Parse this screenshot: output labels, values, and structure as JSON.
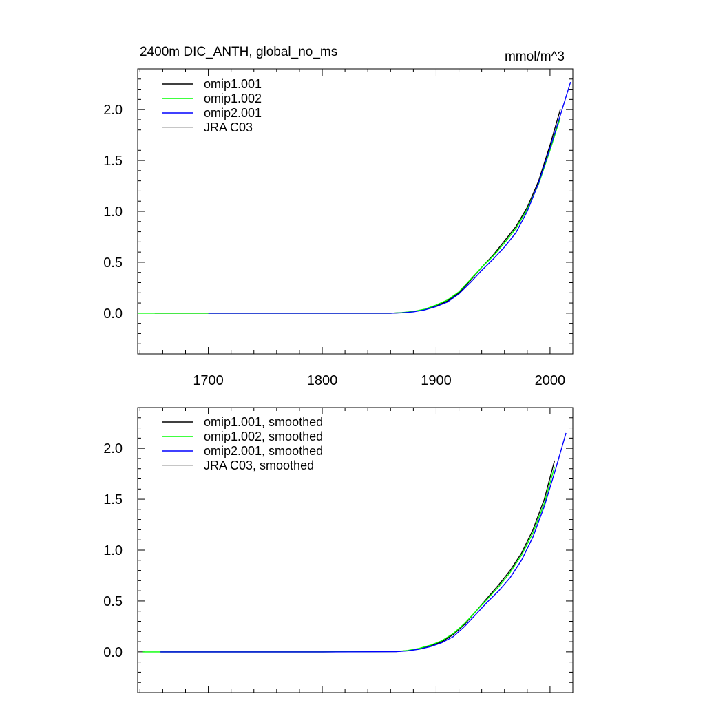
{
  "chart_data": [
    {
      "type": "line",
      "title": "2400m DIC_ANTH, global_no_ms",
      "units": "mmol/m^3",
      "xlim": [
        1638,
        2020
      ],
      "ylim": [
        -0.4,
        2.4
      ],
      "xticks": [
        1700,
        1800,
        1900,
        2000
      ],
      "xtick_labels": [
        "1700",
        "1800",
        "1900",
        "2000"
      ],
      "yticks": [
        0.0,
        0.5,
        1.0,
        1.5,
        2.0
      ],
      "ytick_labels": [
        "0.0",
        "0.5",
        "1.0",
        "1.5",
        "2.0"
      ],
      "show_xtick_labels": true,
      "legend_position": "top-left",
      "series": [
        {
          "name": "omip1.001",
          "color": "#000000",
          "x": [
            1653,
            1700,
            1800,
            1860,
            1870,
            1880,
            1890,
            1900,
            1910,
            1920,
            1930,
            1940,
            1950,
            1960,
            1970,
            1980,
            1990,
            2000,
            2009
          ],
          "y": [
            0,
            0,
            0,
            0,
            0.005,
            0.015,
            0.035,
            0.07,
            0.12,
            0.2,
            0.32,
            0.45,
            0.57,
            0.71,
            0.85,
            1.04,
            1.3,
            1.65,
            2.0
          ]
        },
        {
          "name": "omip1.002",
          "color": "#00ff00",
          "x": [
            1638,
            1700,
            1800,
            1860,
            1870,
            1880,
            1890,
            1900,
            1910,
            1920,
            1930,
            1940,
            1950,
            1960,
            1970,
            1980,
            1990,
            2000,
            2009
          ],
          "y": [
            0,
            0,
            0,
            0,
            0.006,
            0.017,
            0.04,
            0.08,
            0.13,
            0.21,
            0.33,
            0.45,
            0.56,
            0.69,
            0.83,
            1.02,
            1.27,
            1.6,
            1.92
          ]
        },
        {
          "name": "omip2.001",
          "color": "#0000ff",
          "x": [
            1700,
            1800,
            1860,
            1870,
            1880,
            1890,
            1900,
            1910,
            1920,
            1930,
            1940,
            1950,
            1960,
            1970,
            1980,
            1990,
            2000,
            2010,
            2018
          ],
          "y": [
            0,
            0,
            0,
            0.004,
            0.013,
            0.032,
            0.065,
            0.11,
            0.19,
            0.3,
            0.42,
            0.53,
            0.65,
            0.79,
            1.0,
            1.28,
            1.62,
            1.98,
            2.27
          ]
        },
        {
          "name": "JRA C03",
          "color": "#b4b4b4",
          "x": [],
          "y": []
        }
      ]
    },
    {
      "type": "line",
      "title": "",
      "xlim": [
        1638,
        2020
      ],
      "ylim": [
        -0.4,
        2.4
      ],
      "xticks": [
        1700,
        1800,
        1900,
        2000
      ],
      "xtick_labels": [],
      "yticks": [
        0.0,
        0.5,
        1.0,
        1.5,
        2.0
      ],
      "ytick_labels": [
        "0.0",
        "0.5",
        "1.0",
        "1.5",
        "2.0"
      ],
      "show_xtick_labels": false,
      "legend_position": "top-left",
      "series": [
        {
          "name": "omip1.001, smoothed",
          "color": "#000000",
          "x": [
            1658,
            1700,
            1800,
            1865,
            1875,
            1885,
            1895,
            1905,
            1915,
            1925,
            1935,
            1945,
            1955,
            1965,
            1975,
            1985,
            1995,
            2004
          ],
          "y": [
            0,
            0,
            0,
            0.003,
            0.012,
            0.03,
            0.06,
            0.1,
            0.17,
            0.27,
            0.4,
            0.53,
            0.66,
            0.8,
            0.97,
            1.2,
            1.5,
            1.88
          ]
        },
        {
          "name": "omip1.002, smoothed",
          "color": "#00ff00",
          "x": [
            1642,
            1700,
            1800,
            1865,
            1875,
            1885,
            1895,
            1905,
            1915,
            1925,
            1935,
            1945,
            1955,
            1965,
            1975,
            1985,
            1995,
            2004
          ],
          "y": [
            0,
            0,
            0,
            0.004,
            0.014,
            0.034,
            0.066,
            0.11,
            0.18,
            0.28,
            0.4,
            0.52,
            0.64,
            0.78,
            0.95,
            1.17,
            1.46,
            1.82
          ]
        },
        {
          "name": "omip2.001, smoothed",
          "color": "#0000ff",
          "x": [
            1658,
            1700,
            1800,
            1865,
            1875,
            1885,
            1895,
            1905,
            1915,
            1925,
            1935,
            1945,
            1955,
            1965,
            1975,
            1985,
            1995,
            2005,
            2014
          ],
          "y": [
            0,
            0,
            0,
            0.002,
            0.01,
            0.026,
            0.052,
            0.09,
            0.15,
            0.25,
            0.37,
            0.49,
            0.6,
            0.73,
            0.9,
            1.13,
            1.43,
            1.8,
            2.15
          ]
        },
        {
          "name": "JRA C03, smoothed",
          "color": "#b4b4b4",
          "x": [],
          "y": []
        }
      ]
    }
  ]
}
